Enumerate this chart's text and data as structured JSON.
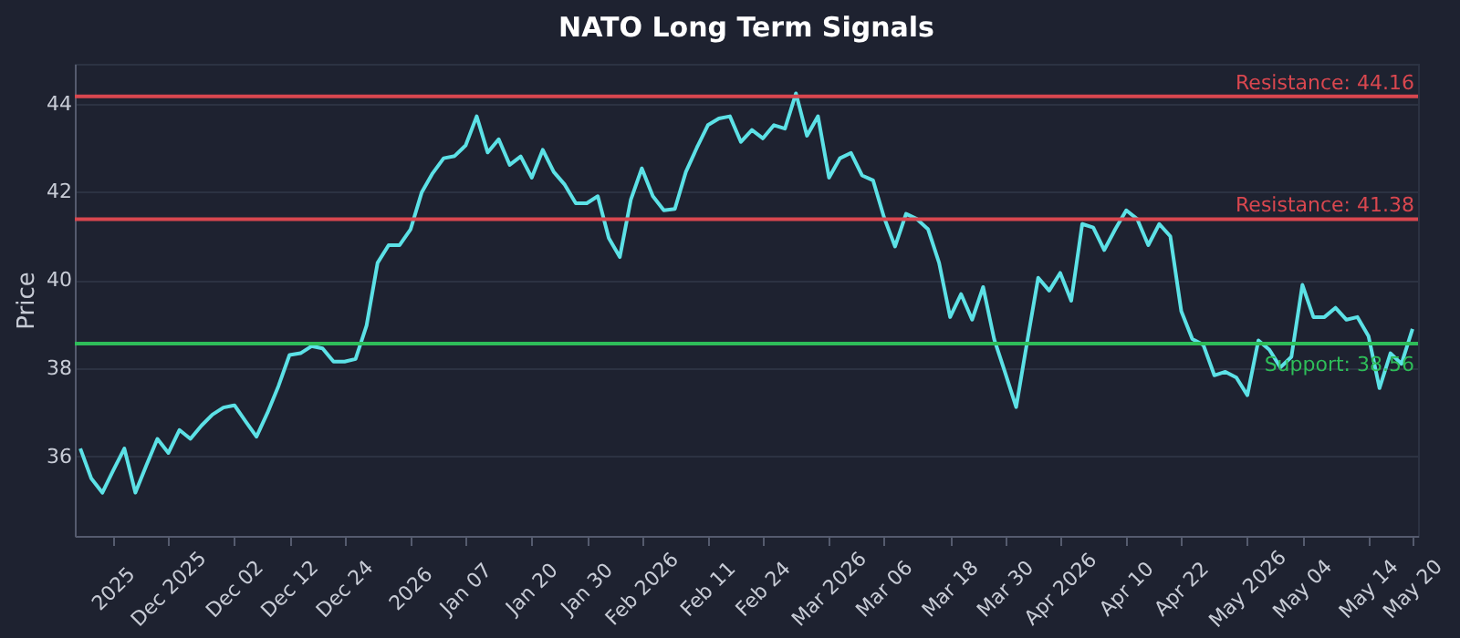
{
  "chart_data": {
    "type": "line",
    "title": "NATO Long Term Signals",
    "ylabel": "Price",
    "categories": [
      null,
      null,
      null,
      "2025",
      null,
      null,
      null,
      null,
      "Dec 2025",
      null,
      null,
      null,
      null,
      null,
      "Dec 02",
      null,
      null,
      null,
      null,
      "Dec 12",
      null,
      null,
      null,
      null,
      "Dec 24",
      null,
      null,
      null,
      null,
      null,
      "2026",
      null,
      null,
      null,
      null,
      "Jan 07",
      null,
      null,
      null,
      null,
      null,
      "Jan 20",
      null,
      null,
      null,
      null,
      "Jan 30",
      null,
      null,
      null,
      null,
      "Feb 2026",
      null,
      null,
      null,
      null,
      null,
      "Feb 11",
      null,
      null,
      null,
      null,
      "Feb 24",
      null,
      null,
      null,
      null,
      null,
      "Mar 2026",
      null,
      null,
      null,
      null,
      "Mar 06",
      null,
      null,
      null,
      null,
      null,
      "Mar 18",
      null,
      null,
      null,
      null,
      "Mar 30",
      null,
      null,
      null,
      null,
      "Apr 2026",
      null,
      null,
      null,
      null,
      null,
      "Apr 10",
      null,
      null,
      null,
      null,
      "Apr 22",
      null,
      null,
      null,
      null,
      null,
      "May 2026",
      null,
      null,
      null,
      null,
      "May 04",
      null,
      null,
      null,
      null,
      null,
      "May 14",
      null,
      null,
      null,
      "May 20"
    ],
    "series": [
      {
        "color": "#5ce1e6",
        "values": [
          36.18,
          35.5,
          35.18,
          35.69,
          36.18,
          35.18,
          35.8,
          36.4,
          36.08,
          36.6,
          36.4,
          36.7,
          36.95,
          37.11,
          37.16,
          36.8,
          36.45,
          36.99,
          37.6,
          38.3,
          38.34,
          38.5,
          38.45,
          38.15,
          38.15,
          38.21,
          38.97,
          40.39,
          40.79,
          40.79,
          41.15,
          41.98,
          42.42,
          42.76,
          42.81,
          43.05,
          43.71,
          42.89,
          43.19,
          42.61,
          42.8,
          42.32,
          42.95,
          42.45,
          42.16,
          41.74,
          41.74,
          41.9,
          40.95,
          40.52,
          41.82,
          42.53,
          41.9,
          41.58,
          41.61,
          42.45,
          43.0,
          43.51,
          43.66,
          43.71,
          43.13,
          43.4,
          43.21,
          43.51,
          43.43,
          44.23,
          43.27,
          43.71,
          42.32,
          42.76,
          42.88,
          42.37,
          42.26,
          41.42,
          40.76,
          41.5,
          41.38,
          41.15,
          40.39,
          39.16,
          39.68,
          39.1,
          39.84,
          38.66,
          37.9,
          37.12,
          38.6,
          40.05,
          39.76,
          40.16,
          39.53,
          41.27,
          41.19,
          40.68,
          41.15,
          41.58,
          41.38,
          40.79,
          41.27,
          40.99,
          39.29,
          38.66,
          38.53,
          37.84,
          37.92,
          37.79,
          37.39,
          38.63,
          38.42,
          38.02,
          38.26,
          39.89,
          39.16,
          39.16,
          39.37,
          39.1,
          39.16,
          38.73,
          37.55,
          38.34,
          38.1,
          38.89
        ]
      }
    ],
    "ylim": [
      34.2,
      44.9
    ],
    "yticks": [
      36,
      38,
      40,
      42,
      44
    ],
    "grid": "y",
    "ref_lines": [
      {
        "axis": "y",
        "value": 44.16,
        "label": "Resistance: 44.16",
        "color": "#d9474f"
      },
      {
        "axis": "y",
        "value": 41.38,
        "label": "Resistance: 41.38",
        "color": "#d9474f"
      },
      {
        "axis": "y",
        "value": 38.56,
        "label": "Support: 38.56",
        "color": "#2ebd59"
      }
    ]
  }
}
